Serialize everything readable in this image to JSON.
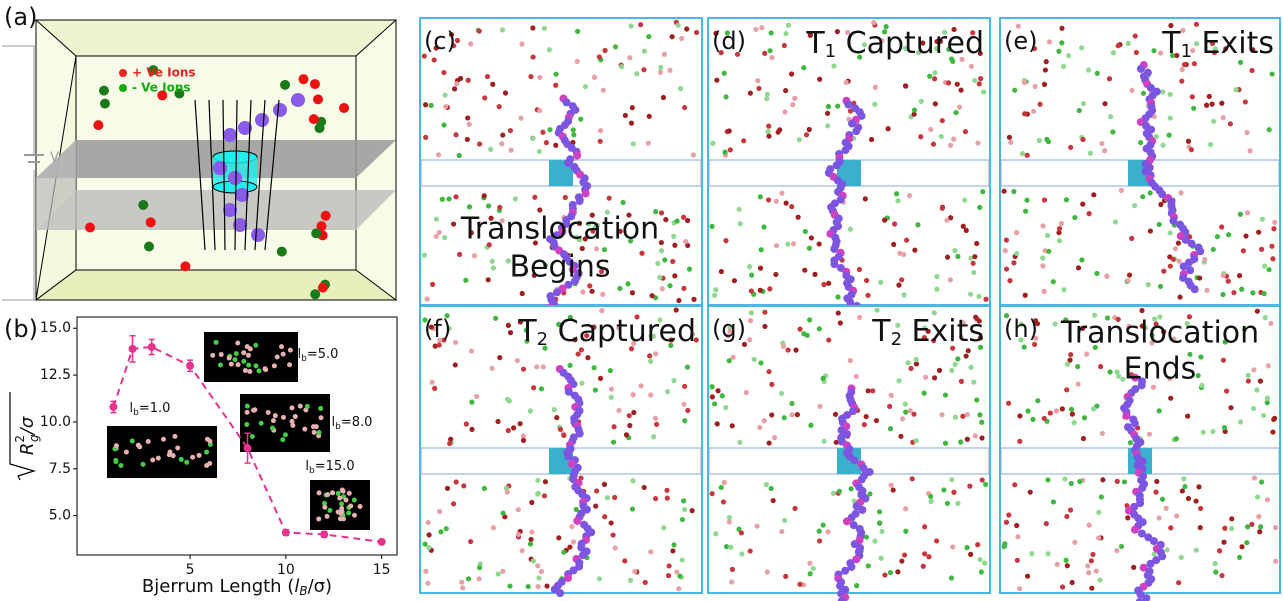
{
  "panel_a": {
    "label": "(a)",
    "legend": [
      "+ Ve Ions",
      "- Ve Ions"
    ],
    "voltage": "V"
  },
  "snapshots": [
    {
      "label": "(c)",
      "lines": [
        "Translocation",
        "Begins"
      ]
    },
    {
      "label": "(d)",
      "caption": {
        "main": "T",
        "sub": "1",
        "rest": " Captured"
      }
    },
    {
      "label": "(e)",
      "caption": {
        "main": "T",
        "sub": "1",
        "rest": " Exits"
      }
    },
    {
      "label": "(f)",
      "caption": {
        "main": "T",
        "sub": "2",
        "rest": " Captured"
      }
    },
    {
      "label": "(g)",
      "caption": {
        "main": "T",
        "sub": "2",
        "rest": " Exits"
      }
    },
    {
      "label": "(h)",
      "lines": [
        "Translocation",
        "Ends"
      ]
    }
  ],
  "chart_data": {
    "type": "line",
    "label": "(b)",
    "xlabel": {
      "pre": "Bjerrum Length (",
      "var": "l",
      "sub": "B",
      "post": "/σ)"
    },
    "ylabel": {
      "var": "R",
      "sub": "g",
      "sup": "2",
      "post": "/σ"
    },
    "x": [
      1,
      2,
      3,
      5,
      8,
      10,
      12,
      15
    ],
    "values": [
      10.8,
      13.9,
      14.0,
      13.0,
      8.6,
      4.1,
      4.0,
      3.6
    ],
    "errors": [
      0.3,
      0.7,
      0.4,
      0.3,
      0.8,
      0.15,
      0.15,
      0.1
    ],
    "color": "#e8338e",
    "xlim": [
      -0.9,
      15.8
    ],
    "ylim": [
      2.9,
      15.6
    ],
    "xticks": [
      5,
      10,
      15
    ],
    "yticks": [
      {
        "value": 5,
        "label": "5.0"
      },
      {
        "value": 7.5,
        "label": "7.5"
      },
      {
        "value": 10,
        "label": "10.0"
      },
      {
        "value": 12.5,
        "label": "12.5"
      },
      {
        "value": 15,
        "label": "15.0"
      }
    ],
    "annotations": [
      {
        "l": "l",
        "sub": "b",
        "rest": "=1.0"
      },
      {
        "l": "l",
        "sub": "b",
        "rest": "=5.0"
      },
      {
        "l": "l",
        "sub": "b",
        "rest": "=8.0"
      },
      {
        "l": "l",
        "sub": "b",
        "rest": "=15.0"
      }
    ]
  }
}
